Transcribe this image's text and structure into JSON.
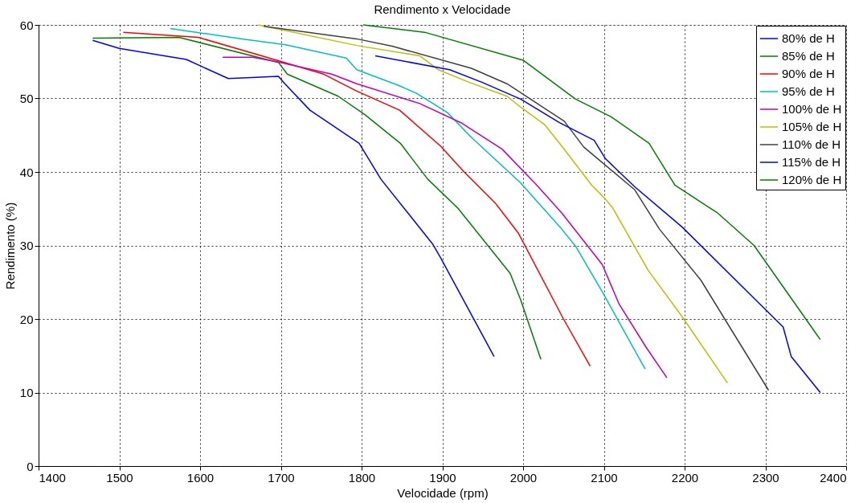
{
  "chart_data": {
    "type": "line",
    "title": "Rendimento x Velocidade",
    "xlabel": "Velocidade (rpm)",
    "ylabel": "Rendimento (%)",
    "xlim": [
      1400,
      2400
    ],
    "xticks": [
      1400,
      1500,
      1600,
      1700,
      1800,
      1900,
      2000,
      2100,
      2200,
      2300,
      2400
    ],
    "ylim": [
      0,
      60
    ],
    "yticks": [
      0,
      10,
      20,
      30,
      40,
      50,
      60
    ],
    "grid": true,
    "legend": "top right",
    "line_style": "solid",
    "series": [
      {
        "name": "80% de H",
        "color": "#0000ff",
        "x": [
          1467,
          1500,
          1583,
          1635,
          1697,
          1705,
          1736,
          1797,
          1824,
          1888,
          1898,
          1964
        ],
        "values": [
          57.9,
          56.8,
          55.3,
          52.7,
          53.0,
          52.0,
          48.4,
          43.9,
          39.0,
          30.2,
          28.3,
          14.9
        ]
      },
      {
        "name": "85% de H",
        "color": "#008000",
        "x": [
          1467,
          1574,
          1697,
          1708,
          1771,
          1804,
          1848,
          1882,
          1919,
          1984,
          1997,
          2022
        ],
        "values": [
          58.2,
          58.3,
          54.9,
          53.3,
          50.3,
          47.8,
          43.9,
          39.0,
          35.1,
          26.2,
          22.6,
          14.5
        ]
      },
      {
        "name": "90% de H",
        "color": "#ff0000",
        "x": [
          1505,
          1598,
          1695,
          1753,
          1794,
          1847,
          1898,
          1926,
          1966,
          1994,
          2050,
          2083
        ],
        "values": [
          59.0,
          58.3,
          55.2,
          53.3,
          51.0,
          48.4,
          43.5,
          40.1,
          35.7,
          31.7,
          20.0,
          13.6
        ]
      },
      {
        "name": "95% de H",
        "color": "#00bfbf",
        "x": [
          1563,
          1652,
          1706,
          1781,
          1794,
          1845,
          1868,
          1906,
          1936,
          1997,
          2048,
          2065,
          2098,
          2151
        ],
        "values": [
          59.5,
          58.1,
          57.3,
          55.5,
          53.9,
          51.8,
          50.7,
          48.1,
          44.7,
          38.5,
          32.2,
          29.9,
          23.7,
          13.2
        ]
      },
      {
        "name": "100% de H",
        "color": "#bf00bf",
        "x": [
          1628,
          1665,
          1695,
          1763,
          1794,
          1872,
          1923,
          1974,
          2017,
          2048,
          2098,
          2119,
          2152,
          2178
        ],
        "values": [
          55.6,
          55.6,
          55.0,
          53.3,
          52.0,
          49.3,
          46.7,
          43.1,
          38.2,
          34.4,
          27.4,
          22.0,
          16.2,
          12.0
        ]
      },
      {
        "name": "105% de H",
        "color": "#bfbf00",
        "x": [
          1672,
          1794,
          1872,
          1895,
          1933,
          1980,
          1997,
          2027,
          2048,
          2085,
          2102,
          2111,
          2155,
          2197,
          2253
        ],
        "values": [
          60.0,
          57.2,
          55.8,
          53.9,
          52.2,
          50.3,
          48.8,
          46.4,
          43.5,
          38.2,
          36.3,
          35.1,
          26.6,
          20.3,
          11.3
        ]
      },
      {
        "name": "110% de H",
        "color": "#404040",
        "x": [
          1679,
          1794,
          1838,
          1936,
          1980,
          2051,
          2075,
          2138,
          2169,
          2220,
          2304
        ],
        "values": [
          59.8,
          58.1,
          57.1,
          54.1,
          52.0,
          46.9,
          43.4,
          37.6,
          32.2,
          25.3,
          10.3
        ]
      },
      {
        "name": "115% de H",
        "color": "#0000ff",
        "x": [
          1817,
          1909,
          1949,
          1997,
          2045,
          2088,
          2102,
          2138,
          2197,
          2288,
          2322,
          2332,
          2368
        ],
        "values": [
          55.8,
          53.9,
          52.2,
          49.9,
          46.7,
          44.3,
          41.8,
          38.0,
          32.5,
          22.6,
          18.9,
          14.9,
          10.0
        ]
      },
      {
        "name": "120% de H",
        "color": "#008000",
        "x": [
          1802,
          1878,
          2000,
          2065,
          2109,
          2156,
          2188,
          2241,
          2286,
          2368
        ],
        "values": [
          60.0,
          59.0,
          55.2,
          49.9,
          47.5,
          43.9,
          38.2,
          34.4,
          30.0,
          17.2
        ]
      }
    ]
  }
}
